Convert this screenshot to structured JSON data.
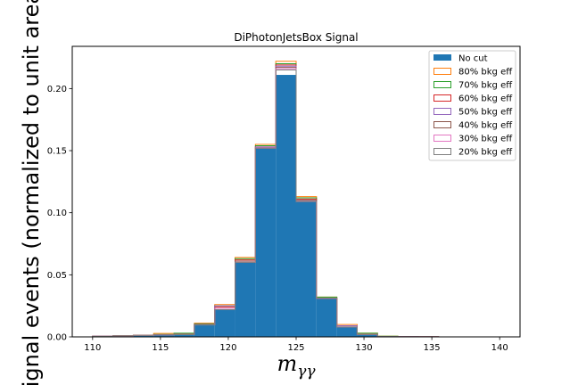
{
  "chart_data": {
    "type": "bar",
    "title": "DiPhotonJetsBox Signal",
    "xlabel": "m_γγ",
    "xlabel_main": "m",
    "xlabel_sub": "γγ",
    "ylabel": "Signal events (normalized to unit area)",
    "xlim": [
      108.5,
      141.5
    ],
    "ylim": [
      0,
      0.234
    ],
    "xticks": [
      110,
      115,
      120,
      125,
      130,
      135,
      140
    ],
    "xtick_labels": [
      "110",
      "115",
      "120",
      "125",
      "130",
      "135",
      "140"
    ],
    "yticks": [
      0.0,
      0.05,
      0.1,
      0.15,
      0.2
    ],
    "ytick_labels": [
      "0.00",
      "0.05",
      "0.10",
      "0.15",
      "0.20"
    ],
    "bin_edges": [
      110,
      111.5,
      113,
      114.5,
      116,
      117.5,
      119,
      120.5,
      122,
      123.5,
      125,
      126.5,
      128,
      129.5,
      131,
      132.5,
      134,
      135.5,
      137,
      138.5,
      140
    ],
    "legend_position": "top-right",
    "series": [
      {
        "name": "No cut",
        "style": "filled",
        "color": "#1f77b4",
        "values": [
          0.0005,
          0.0008,
          0.0012,
          0.0016,
          0.0018,
          0.0095,
          0.022,
          0.06,
          0.152,
          0.211,
          0.109,
          0.031,
          0.008,
          0.002,
          0.0004,
          0.0002,
          0.0001,
          0.0,
          0.0,
          0.0
        ]
      },
      {
        "name": "80% bkg eff",
        "style": "step",
        "color": "#ff7f0e",
        "values": [
          0.0006,
          0.0009,
          0.0014,
          0.0028,
          0.0028,
          0.011,
          0.026,
          0.064,
          0.155,
          0.222,
          0.113,
          0.032,
          0.01,
          0.003,
          0.0005,
          0.0003,
          0.0001,
          0.0,
          0.0,
          0.0
        ]
      },
      {
        "name": "70% bkg eff",
        "style": "step",
        "color": "#2ca02c",
        "values": [
          0.0006,
          0.0009,
          0.0013,
          0.002,
          0.003,
          0.0105,
          0.025,
          0.063,
          0.154,
          0.22,
          0.112,
          0.032,
          0.009,
          0.003,
          0.0005,
          0.0003,
          0.0001,
          0.0,
          0.0,
          0.0
        ]
      },
      {
        "name": "60% bkg eff",
        "style": "step",
        "color": "#d62728",
        "values": [
          0.0005,
          0.0008,
          0.0012,
          0.0018,
          0.0022,
          0.01,
          0.024,
          0.062,
          0.153,
          0.219,
          0.111,
          0.031,
          0.009,
          0.002,
          0.0004,
          0.0002,
          0.0001,
          0.0,
          0.0,
          0.0
        ]
      },
      {
        "name": "50% bkg eff",
        "style": "step",
        "color": "#9467bd",
        "values": [
          0.0005,
          0.0008,
          0.0012,
          0.0017,
          0.0021,
          0.01,
          0.025,
          0.061,
          0.153,
          0.218,
          0.11,
          0.031,
          0.009,
          0.002,
          0.0004,
          0.0002,
          0.0001,
          0.0,
          0.0,
          0.0
        ]
      },
      {
        "name": "40% bkg eff",
        "style": "step",
        "color": "#8c564b",
        "values": [
          0.0005,
          0.0008,
          0.0012,
          0.0017,
          0.002,
          0.0098,
          0.023,
          0.061,
          0.152,
          0.217,
          0.11,
          0.031,
          0.008,
          0.002,
          0.0004,
          0.0002,
          0.0001,
          0.0,
          0.0,
          0.0
        ]
      },
      {
        "name": "30% bkg eff",
        "style": "step",
        "color": "#e377c2",
        "values": [
          0.0005,
          0.0008,
          0.0012,
          0.0016,
          0.0019,
          0.0097,
          0.023,
          0.06,
          0.152,
          0.216,
          0.109,
          0.031,
          0.008,
          0.002,
          0.0004,
          0.0002,
          0.0001,
          0.0,
          0.0,
          0.0
        ]
      },
      {
        "name": "20% bkg eff",
        "style": "step",
        "color": "#7f7f7f",
        "values": [
          0.0005,
          0.0008,
          0.0012,
          0.0016,
          0.0018,
          0.0096,
          0.022,
          0.06,
          0.152,
          0.215,
          0.109,
          0.031,
          0.008,
          0.002,
          0.0004,
          0.0002,
          0.0001,
          0.0,
          0.0,
          0.0
        ]
      }
    ]
  }
}
